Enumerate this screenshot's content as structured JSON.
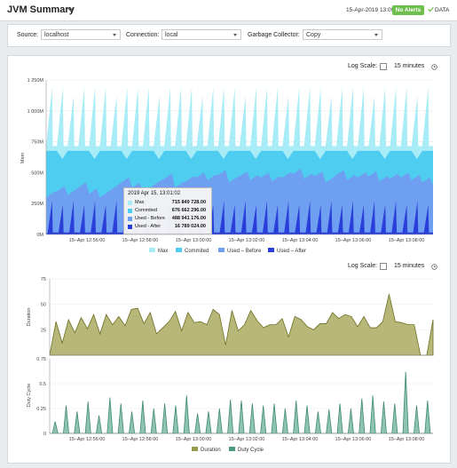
{
  "header": {
    "title": "JVM Summary",
    "timestamp": "15-Apr-2019 13:09",
    "alerts_badge": "No Alerts",
    "data_label": "DATA"
  },
  "filters": {
    "source_label": "Source:",
    "source_value": "localhost",
    "connection_label": "Connection:",
    "connection_value": "local",
    "gc_label": "Garbage Collector:",
    "gc_value": "Copy"
  },
  "controls": {
    "log_scale_label": "Log Scale:",
    "time_range": "15 minutes"
  },
  "colors": {
    "max": "#a8ecf7",
    "committed": "#4fcdf0",
    "used_before": "#6f9ff0",
    "used_after": "#2a3fd9",
    "duration": "#9a9a4f",
    "duty_cycle": "#4a9a80"
  },
  "tooltip": {
    "time": "2019 Apr 15, 13:01:02",
    "rows": [
      {
        "name": "Max",
        "value": "715 849 728.00"
      },
      {
        "name": "Commited",
        "value": "676 662 296.00"
      },
      {
        "name": "Used - Before",
        "value": "488 941 176.00"
      },
      {
        "name": "Used - After",
        "value": "16 789 024.00"
      }
    ]
  },
  "chart_data": [
    {
      "type": "area",
      "ylabel": "Mem",
      "ylim": [
        0,
        1250000000
      ],
      "y_ticks": [
        "0M",
        "250M",
        "500M",
        "750M",
        "1 000M",
        "1 250M"
      ],
      "x_ticks": [
        "15–Apr 12:56:00",
        "15–Apr 12:58:00",
        "15–Apr 13:00:00",
        "15–Apr 13:02:00",
        "15–Apr 13:04:00",
        "15–Apr 13:06:00",
        "15–Apr 13:08:00"
      ],
      "legend": [
        "Max",
        "Commited",
        "Used – Before",
        "Used – After"
      ],
      "series": [
        {
          "name": "Max",
          "values_approx": {
            "base": 715000000,
            "peak": 1190000000
          }
        },
        {
          "name": "Commited",
          "values_approx": {
            "base": 676000000
          }
        },
        {
          "name": "Used – Before",
          "values_approx": {
            "range": [
              300000000,
              500000000
            ]
          }
        },
        {
          "name": "Used – After",
          "values_approx": {
            "range": [
              16000000,
              280000000
            ]
          }
        }
      ]
    },
    {
      "type": "area",
      "ylabel": "Duration",
      "ylim": [
        0,
        75
      ],
      "y_ticks": [
        "0",
        "25",
        "50",
        "75"
      ],
      "legend": [
        "Duration"
      ],
      "values": [
        0,
        33,
        12,
        35,
        22,
        37,
        26,
        40,
        21,
        40,
        30,
        38,
        29,
        45,
        46,
        31,
        42,
        21,
        27,
        33,
        43,
        24,
        42,
        32,
        33,
        30,
        45,
        40,
        10,
        44,
        24,
        30,
        44,
        34,
        27,
        30,
        30,
        36,
        18,
        38,
        35,
        28,
        25,
        31,
        31,
        42,
        36,
        40,
        38,
        28,
        38,
        27,
        27,
        33,
        60,
        33,
        32,
        30,
        30,
        0,
        0,
        35
      ]
    },
    {
      "type": "area",
      "ylabel": "Duty Cycle",
      "ylim": [
        0,
        0.75
      ],
      "y_ticks": [
        "0",
        "0.25",
        "0.5",
        "0.75"
      ],
      "x_ticks": [
        "15–Apr 12:56:00",
        "15–Apr 12:58:00",
        "15–Apr 13:00:00",
        "15–Apr 13:02:00",
        "15–Apr 13:04:00",
        "15–Apr 13:06:00",
        "15–Apr 13:08:00"
      ],
      "legend": [
        "Duration",
        "Duty Cycle"
      ],
      "values": [
        0.12,
        0.28,
        0.22,
        0.32,
        0.18,
        0.36,
        0.3,
        0.22,
        0.33,
        0.25,
        0.3,
        0.28,
        0.38,
        0.2,
        0.22,
        0.25,
        0.34,
        0.33,
        0.3,
        0.28,
        0.3,
        0.25,
        0.33,
        0.28,
        0.22,
        0.24,
        0.3,
        0.25,
        0.35,
        0.38,
        0.32,
        0.3,
        0.62,
        0.28,
        0.33
      ]
    }
  ]
}
